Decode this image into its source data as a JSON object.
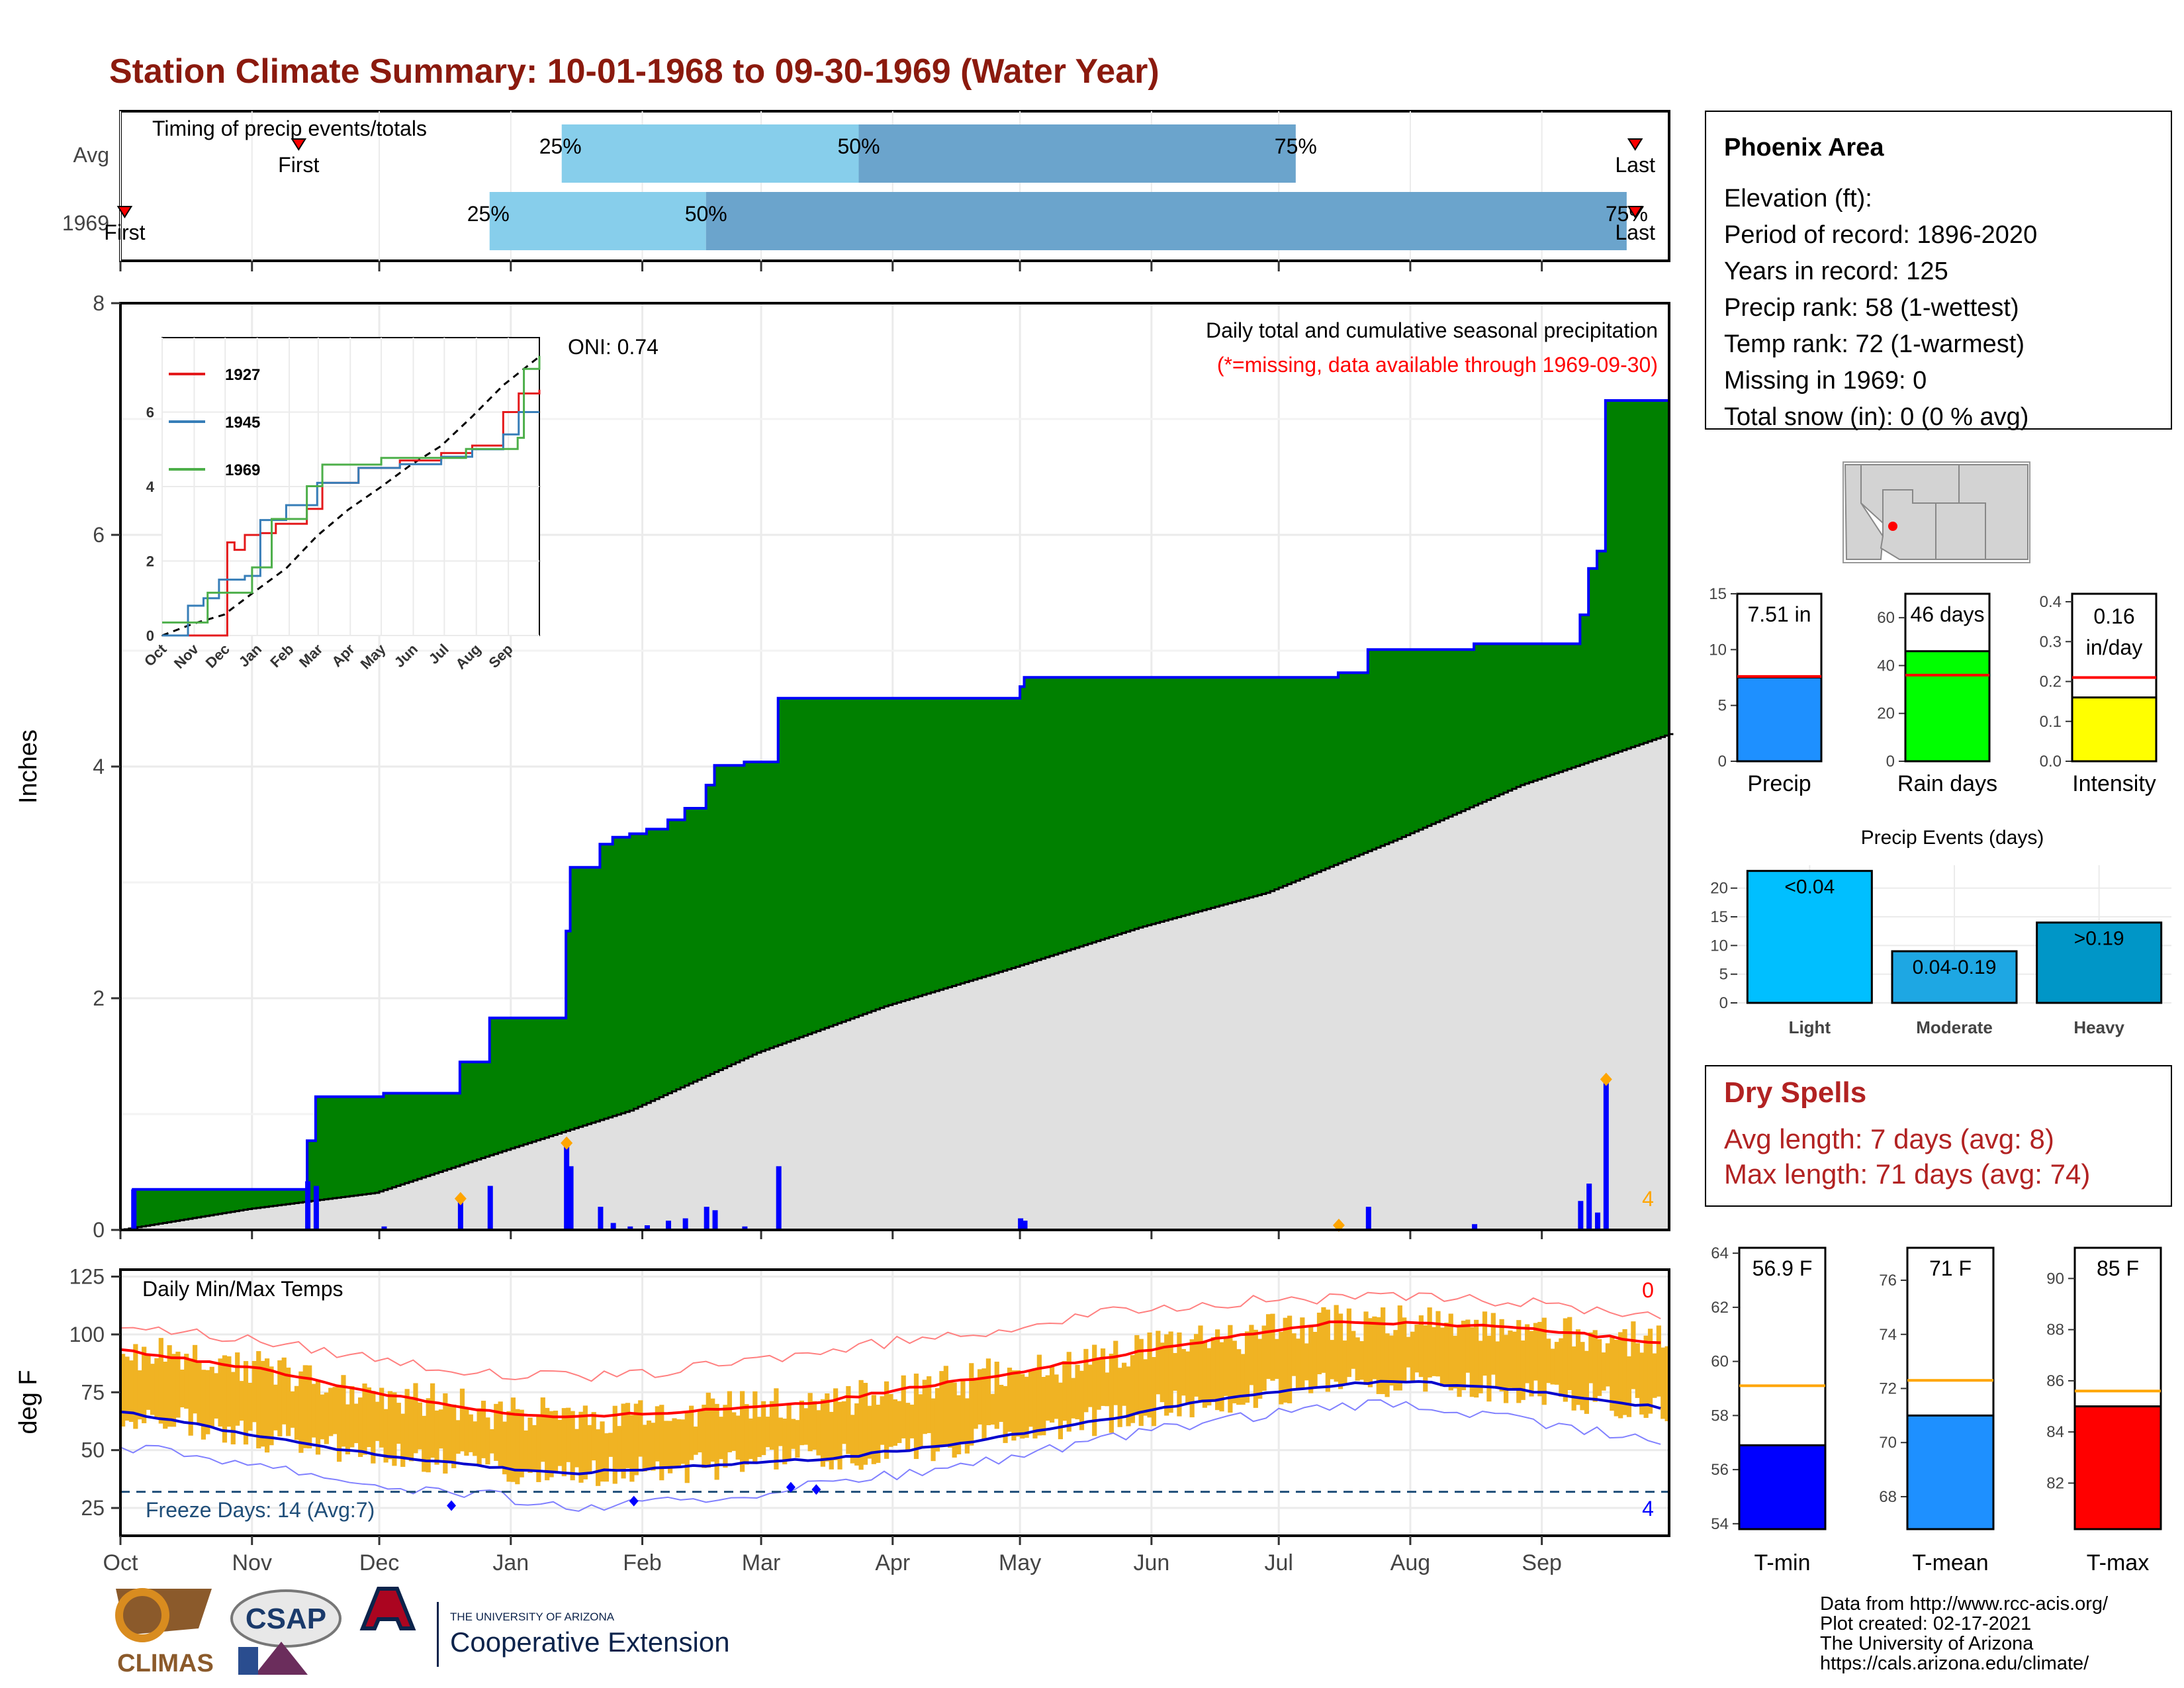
{
  "title": "Station Climate Summary: 10-01-1968 to 09-30-1969 (Water Year)",
  "colors": {
    "title": "#8b1a0e",
    "light_blue": "#87ceeb",
    "mid_blue": "#6ba4cc",
    "green": "#008000",
    "brown": "#8b5a00",
    "grey_fill": "#e0e0e0",
    "bar_blue": "#0000ff",
    "marker_orange": "#ffa500",
    "temp_bar": "#f0b323",
    "red": "#ff0000",
    "dark_red": "#b22222"
  },
  "timing": {
    "label": "Timing of precip events/totals",
    "rows": [
      "Avg",
      "1969"
    ],
    "avg": {
      "first_label": "First",
      "last_label": "Last",
      "q25": "25%",
      "q50": "50%",
      "q75": "75%",
      "first_day": 42,
      "last_day": 357,
      "p25_day": 104,
      "p50_day": 174,
      "p75_day": 277
    },
    "y1969": {
      "first_label": "First",
      "last_label": "Last",
      "q25": "25%",
      "q50": "50%",
      "q75": "75%",
      "first_day": 1,
      "last_day": 357,
      "p25_day": 87,
      "p50_day": 138,
      "p75_day": 355
    }
  },
  "main": {
    "ylabel": "Inches",
    "header": "Daily total and cumulative seasonal precipitation",
    "subheader": "(*=missing, data available through 1969-09-30)",
    "oni": "ONI: 0.74",
    "corner_count": "4",
    "y_ticks": [
      "0",
      "2",
      "4",
      "6",
      "8"
    ],
    "ylim": [
      0,
      8
    ]
  },
  "inset": {
    "legend": [
      "1927",
      "1945",
      "1969"
    ],
    "y_ticks": [
      "0",
      "2",
      "4",
      "6"
    ],
    "x_ticks": [
      "Oct",
      "Nov",
      "Dec",
      "Jan",
      "Feb",
      "Mar",
      "Apr",
      "May",
      "Jun",
      "Jul",
      "Aug",
      "Sep"
    ]
  },
  "temps": {
    "ylabel": "deg F",
    "label": "Daily Min/Max Temps",
    "freeze_label": "Freeze Days: 14 (Avg:7)",
    "top_count": "0",
    "bottom_count": "4",
    "y_ticks": [
      "25",
      "50",
      "75",
      "100",
      "125"
    ],
    "x_ticks": [
      "Oct",
      "Nov",
      "Dec",
      "Jan",
      "Feb",
      "Mar",
      "Apr",
      "May",
      "Jun",
      "Jul",
      "Aug",
      "Sep"
    ]
  },
  "info": {
    "name": "Phoenix Area",
    "lines": [
      "Elevation (ft):",
      "Period of record: 1896-2020",
      "Years in record: 125",
      "Precip rank: 58 (1-wettest)",
      "Temp rank: 72 (1-warmest)",
      "Missing in 1969: 0",
      "Total snow (in): 0 (0 % avg)"
    ]
  },
  "stats": [
    {
      "label": "Precip",
      "value_text": "7.51 in",
      "value": 7.51,
      "avg": 7.6,
      "ymax": 15,
      "ticks": [
        "0",
        "5",
        "10",
        "15"
      ],
      "color": "#1e90ff"
    },
    {
      "label": "Rain days",
      "value_text": "46 days",
      "value": 46,
      "avg": 36,
      "ymax": 70,
      "ticks": [
        "0",
        "20",
        "40",
        "60"
      ],
      "color": "#00ff00"
    },
    {
      "label": "Intensity",
      "value_text_1": "0.16",
      "value_text_2": "in/day",
      "value": 0.16,
      "avg": 0.21,
      "ymax": 0.42,
      "ticks": [
        "0.0",
        "0.1",
        "0.2",
        "0.3",
        "0.4"
      ],
      "color": "#ffff00"
    }
  ],
  "events": {
    "title": "Precip Events (days)",
    "y_ticks": [
      "0",
      "5",
      "10",
      "15",
      "20"
    ],
    "bars": [
      {
        "name": "Light",
        "label": "<0.04",
        "value": 23,
        "color": "#00bfff"
      },
      {
        "name": "Moderate",
        "label": "0.04-0.19",
        "value": 9,
        "color": "#1ea7e3"
      },
      {
        "name": "Heavy",
        "label": ">0.19",
        "value": 14,
        "color": "#0096c7"
      }
    ]
  },
  "dry": {
    "title": "Dry Spells",
    "avg": "Avg length: 7 days (avg: 8)",
    "max": "Max length: 71 days (avg: 74)"
  },
  "temp_stats": [
    {
      "label": "T-min",
      "value_text": "56.9 F",
      "value": 56.9,
      "avg": 59.1,
      "ymin": 53.8,
      "ymax": 64.2,
      "ticks": [
        "54",
        "56",
        "58",
        "60",
        "62",
        "64"
      ],
      "color": "#0000ff"
    },
    {
      "label": "T-mean",
      "value_text": "71 F",
      "value": 71,
      "avg": 72.3,
      "ymin": 66.8,
      "ymax": 77.2,
      "ticks": [
        "68",
        "70",
        "72",
        "74",
        "76"
      ],
      "color": "#1e90ff"
    },
    {
      "label": "T-max",
      "value_text": "85 F",
      "value": 85,
      "avg": 85.6,
      "ymin": 80.2,
      "ymax": 91.2,
      "ticks": [
        "82",
        "84",
        "86",
        "88",
        "90"
      ],
      "color": "#ff0000"
    }
  ],
  "footer": {
    "lines": [
      "Data from http://www.rcc-acis.org/",
      "Plot created: 02-17-2021",
      "The University of Arizona",
      "https://cals.arizona.edu/climate/"
    ]
  },
  "logos": {
    "climas": "CLIMAS",
    "csap": "CSAP",
    "ua_small": "THE UNIVERSITY OF ARIZONA",
    "ua_big": "Cooperative Extension"
  },
  "chart_data": {
    "type": "area",
    "x_unit": "day of water year",
    "precip_events": [
      {
        "day": 3,
        "in": 0.35
      },
      {
        "day": 44,
        "in": 0.42
      },
      {
        "day": 46,
        "in": 0.38
      },
      {
        "day": 62,
        "in": 0.03
      },
      {
        "day": 80,
        "in": 0.27
      },
      {
        "day": 87,
        "in": 0.38
      },
      {
        "day": 105,
        "in": 0.75
      },
      {
        "day": 106,
        "in": 0.55
      },
      {
        "day": 113,
        "in": 0.2
      },
      {
        "day": 116,
        "in": 0.06
      },
      {
        "day": 120,
        "in": 0.03
      },
      {
        "day": 124,
        "in": 0.04
      },
      {
        "day": 129,
        "in": 0.08
      },
      {
        "day": 133,
        "in": 0.1
      },
      {
        "day": 138,
        "in": 0.2
      },
      {
        "day": 140,
        "in": 0.17
      },
      {
        "day": 147,
        "in": 0.03
      },
      {
        "day": 155,
        "in": 0.55
      },
      {
        "day": 212,
        "in": 0.1
      },
      {
        "day": 213,
        "in": 0.08
      },
      {
        "day": 287,
        "in": 0.04
      },
      {
        "day": 294,
        "in": 0.2
      },
      {
        "day": 319,
        "in": 0.05
      },
      {
        "day": 344,
        "in": 0.25
      },
      {
        "day": 346,
        "in": 0.4
      },
      {
        "day": 348,
        "in": 0.15
      },
      {
        "day": 350,
        "in": 1.3
      }
    ],
    "avg_cumulative": [
      [
        0,
        0
      ],
      [
        30,
        0.18
      ],
      [
        60,
        0.32
      ],
      [
        90,
        0.68
      ],
      [
        120,
        1.03
      ],
      [
        150,
        1.53
      ],
      [
        180,
        1.93
      ],
      [
        210,
        2.26
      ],
      [
        240,
        2.61
      ],
      [
        270,
        2.91
      ],
      [
        300,
        3.36
      ],
      [
        330,
        3.84
      ],
      [
        365,
        4.28
      ]
    ],
    "cumulative_1969": [
      [
        0,
        0
      ],
      [
        3,
        0.35
      ],
      [
        44,
        0.77
      ],
      [
        46,
        1.15
      ],
      [
        62,
        1.18
      ],
      [
        80,
        1.45
      ],
      [
        87,
        1.83
      ],
      [
        105,
        2.58
      ],
      [
        106,
        3.13
      ],
      [
        113,
        3.33
      ],
      [
        116,
        3.39
      ],
      [
        120,
        3.42
      ],
      [
        124,
        3.46
      ],
      [
        129,
        3.54
      ],
      [
        133,
        3.64
      ],
      [
        138,
        3.84
      ],
      [
        140,
        4.01
      ],
      [
        147,
        4.04
      ],
      [
        155,
        4.59
      ],
      [
        212,
        4.69
      ],
      [
        213,
        4.77
      ],
      [
        287,
        4.81
      ],
      [
        294,
        5.01
      ],
      [
        319,
        5.06
      ],
      [
        344,
        5.31
      ],
      [
        346,
        5.71
      ],
      [
        348,
        5.86
      ],
      [
        350,
        7.16
      ],
      [
        365,
        7.51
      ]
    ],
    "temp_avg_max": [
      [
        0,
        93
      ],
      [
        30,
        86
      ],
      [
        60,
        75
      ],
      [
        90,
        66
      ],
      [
        105,
        64
      ],
      [
        135,
        67
      ],
      [
        165,
        71
      ],
      [
        195,
        79
      ],
      [
        225,
        88
      ],
      [
        255,
        97
      ],
      [
        285,
        105
      ],
      [
        300,
        105
      ],
      [
        330,
        103
      ],
      [
        365,
        96
      ]
    ],
    "temp_avg_min": [
      [
        0,
        67
      ],
      [
        30,
        57
      ],
      [
        60,
        48
      ],
      [
        90,
        42
      ],
      [
        105,
        40
      ],
      [
        135,
        43
      ],
      [
        165,
        46
      ],
      [
        195,
        52
      ],
      [
        225,
        61
      ],
      [
        255,
        71
      ],
      [
        285,
        78
      ],
      [
        300,
        80
      ],
      [
        330,
        76
      ],
      [
        365,
        68
      ]
    ],
    "temp_rec_max": [
      [
        0,
        104
      ],
      [
        30,
        98
      ],
      [
        60,
        90
      ],
      [
        90,
        82
      ],
      [
        120,
        82
      ],
      [
        150,
        89
      ],
      [
        180,
        96
      ],
      [
        210,
        103
      ],
      [
        240,
        111
      ],
      [
        270,
        115
      ],
      [
        300,
        116
      ],
      [
        330,
        114
      ],
      [
        365,
        108
      ]
    ],
    "temp_rec_min": [
      [
        0,
        52
      ],
      [
        30,
        45
      ],
      [
        60,
        35
      ],
      [
        90,
        30
      ],
      [
        105,
        25
      ],
      [
        135,
        28
      ],
      [
        165,
        35
      ],
      [
        195,
        42
      ],
      [
        225,
        52
      ],
      [
        255,
        62
      ],
      [
        285,
        68
      ],
      [
        300,
        70
      ],
      [
        330,
        63
      ],
      [
        365,
        53
      ]
    ],
    "freeze_days": [
      [
        78,
        26
      ],
      [
        121,
        28
      ],
      [
        158,
        34
      ],
      [
        164,
        33
      ]
    ],
    "freeze_threshold": 32
  }
}
